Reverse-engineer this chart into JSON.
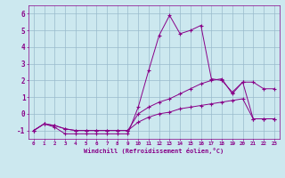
{
  "xlabel": "Windchill (Refroidissement éolien,°C)",
  "x_values": [
    0,
    1,
    2,
    3,
    4,
    5,
    6,
    7,
    8,
    9,
    10,
    11,
    12,
    13,
    14,
    15,
    16,
    17,
    18,
    19,
    20,
    21,
    22,
    23
  ],
  "line1": [
    -1.0,
    -0.6,
    -0.8,
    -1.2,
    -1.2,
    -1.2,
    -1.2,
    -1.2,
    -1.2,
    -1.2,
    0.4,
    2.6,
    4.7,
    5.9,
    4.8,
    5.0,
    5.3,
    2.1,
    2.0,
    1.3,
    1.9,
    1.9,
    1.5,
    1.5
  ],
  "line2": [
    -1.0,
    -0.6,
    -0.7,
    -0.9,
    -1.0,
    -1.0,
    -1.0,
    -1.0,
    -1.0,
    -1.0,
    0.0,
    0.4,
    0.7,
    0.9,
    1.2,
    1.5,
    1.8,
    2.0,
    2.1,
    1.2,
    1.9,
    -0.3,
    -0.3,
    -0.3
  ],
  "line3": [
    -1.0,
    -0.6,
    -0.7,
    -0.9,
    -1.0,
    -1.0,
    -1.0,
    -1.0,
    -1.0,
    -1.0,
    -0.5,
    -0.2,
    0.0,
    0.1,
    0.3,
    0.4,
    0.5,
    0.6,
    0.7,
    0.8,
    0.9,
    -0.3,
    -0.3,
    -0.3
  ],
  "line_color": "#880088",
  "bg_color": "#cce8ef",
  "grid_color": "#99bbcc",
  "ylim": [
    -1.5,
    6.5
  ],
  "xlim": [
    -0.5,
    23.5
  ],
  "yticks": [
    -1,
    0,
    1,
    2,
    3,
    4,
    5,
    6
  ]
}
